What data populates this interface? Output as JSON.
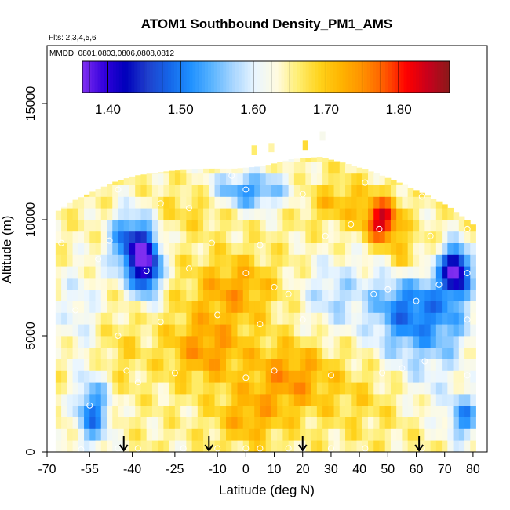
{
  "chart_data": {
    "type": "heatmap",
    "title": "ATOM1 Southbound Density_PM1_AMS",
    "flights_note": "Flts: 2,3,4,5,6",
    "dates_note": "MMDD: 0801,0803,0806,0808,0812",
    "xlabel": "Latitude (deg N)",
    "ylabel": "Altitude (m)",
    "xlim": [
      -70,
      85
    ],
    "ylim": [
      0,
      17500
    ],
    "x_ticks": [
      -70,
      -55,
      -40,
      -25,
      -10,
      0,
      10,
      20,
      30,
      40,
      50,
      60,
      70,
      80
    ],
    "y_ticks": [
      0,
      5000,
      10000,
      15000
    ],
    "colorbar": {
      "range": [
        1.365,
        1.87
      ],
      "ticks": [
        1.4,
        1.5,
        1.6,
        1.7,
        1.8
      ],
      "tick_labels": [
        "1.40",
        "1.50",
        "1.60",
        "1.70",
        "1.80"
      ],
      "colors": [
        "#7f2ef0",
        "#3300dd",
        "#0000bb",
        "#1f3fcc",
        "#1565e8",
        "#1e90ff",
        "#5ab4ff",
        "#a9d6ff",
        "#eaf6ff",
        "#fffbe0",
        "#ffee70",
        "#ffd21a",
        "#ffb300",
        "#ff9000",
        "#ff5a00",
        "#ff0000",
        "#c8001c",
        "#8b1a1a"
      ]
    },
    "profile_top": [
      [
        -68,
        10300
      ],
      [
        -62,
        10800
      ],
      [
        -55,
        11200
      ],
      [
        -48,
        11600
      ],
      [
        -40,
        11900
      ],
      [
        -28,
        12100
      ],
      [
        -15,
        12200
      ],
      [
        -5,
        12200
      ],
      [
        5,
        12300
      ],
      [
        15,
        12600
      ],
      [
        25,
        12700
      ],
      [
        35,
        12400
      ],
      [
        45,
        12000
      ],
      [
        55,
        11500
      ],
      [
        62,
        11100
      ],
      [
        70,
        10600
      ],
      [
        80,
        9700
      ]
    ],
    "sparse_top": [
      [
        2,
        12800
      ],
      [
        8,
        12900
      ],
      [
        20,
        13000
      ],
      [
        26,
        13400
      ]
    ],
    "features": [
      {
        "x": 47,
        "y": 9700,
        "rx": 6,
        "ry": 900,
        "v": 1.84
      },
      {
        "x": 73,
        "y": 7600,
        "rx": 5,
        "ry": 1000,
        "v": 1.39
      },
      {
        "x": -36,
        "y": 7800,
        "rx": 5,
        "ry": 1300,
        "v": 1.41
      },
      {
        "x": -42,
        "y": 8700,
        "rx": 7,
        "ry": 1400,
        "v": 1.48
      },
      {
        "x": -18,
        "y": 10300,
        "rx": 12,
        "ry": 900,
        "v": 1.69
      },
      {
        "x": 0,
        "y": 11000,
        "rx": 14,
        "ry": 800,
        "v": 1.52
      },
      {
        "x": 32,
        "y": 10500,
        "rx": 12,
        "ry": 900,
        "v": 1.71
      },
      {
        "x": 55,
        "y": 6000,
        "rx": 12,
        "ry": 2200,
        "v": 1.5
      },
      {
        "x": 70,
        "y": 5500,
        "rx": 10,
        "ry": 2000,
        "v": 1.56
      },
      {
        "x": 30,
        "y": 6500,
        "rx": 12,
        "ry": 1600,
        "v": 1.58
      },
      {
        "x": -5,
        "y": 6800,
        "rx": 15,
        "ry": 1400,
        "v": 1.73
      },
      {
        "x": -15,
        "y": 4200,
        "rx": 14,
        "ry": 1500,
        "v": 1.74
      },
      {
        "x": 15,
        "y": 3000,
        "rx": 14,
        "ry": 1500,
        "v": 1.74
      },
      {
        "x": 0,
        "y": 1200,
        "rx": 12,
        "ry": 1200,
        "v": 1.72
      },
      {
        "x": -55,
        "y": 1500,
        "rx": 6,
        "ry": 1500,
        "v": 1.5
      },
      {
        "x": -60,
        "y": 6000,
        "rx": 8,
        "ry": 2000,
        "v": 1.6
      },
      {
        "x": 40,
        "y": 2000,
        "rx": 15,
        "ry": 1500,
        "v": 1.68
      },
      {
        "x": 63,
        "y": 2500,
        "rx": 10,
        "ry": 1500,
        "v": 1.62
      },
      {
        "x": 76,
        "y": 1200,
        "rx": 6,
        "ry": 1000,
        "v": 1.52
      },
      {
        "x": -45,
        "y": 4000,
        "rx": 8,
        "ry": 1500,
        "v": 1.68
      },
      {
        "x": 55,
        "y": 8000,
        "rx": 8,
        "ry": 1200,
        "v": 1.74
      }
    ],
    "background_value": 1.65,
    "points": [
      [
        -58,
        100
      ],
      [
        -45,
        150
      ],
      [
        -38,
        150
      ],
      [
        -22,
        150
      ],
      [
        -10,
        150
      ],
      [
        0,
        150
      ],
      [
        5,
        150
      ],
      [
        15,
        150
      ],
      [
        20,
        150
      ],
      [
        30,
        150
      ],
      [
        42,
        150
      ],
      [
        62,
        150
      ],
      [
        -55,
        2000
      ],
      [
        -42,
        3500
      ],
      [
        -38,
        3000
      ],
      [
        -25,
        3400
      ],
      [
        0,
        3200
      ],
      [
        10,
        3500
      ],
      [
        30,
        3300
      ],
      [
        48,
        3400
      ],
      [
        55,
        3600
      ],
      [
        63,
        3900
      ],
      [
        78,
        3300
      ],
      [
        -45,
        5000
      ],
      [
        -30,
        5600
      ],
      [
        -10,
        5900
      ],
      [
        5,
        5500
      ],
      [
        20,
        5700
      ],
      [
        45,
        6800
      ],
      [
        60,
        6500
      ],
      [
        78,
        5700
      ],
      [
        -60,
        6100
      ],
      [
        -35,
        7800
      ],
      [
        -20,
        7900
      ],
      [
        0,
        7700
      ],
      [
        10,
        7100
      ],
      [
        15,
        6800
      ],
      [
        50,
        7000
      ],
      [
        68,
        7200
      ],
      [
        78,
        7700
      ],
      [
        -65,
        9000
      ],
      [
        -52,
        8300
      ],
      [
        -48,
        9100
      ],
      [
        -12,
        9000
      ],
      [
        5,
        8900
      ],
      [
        28,
        9300
      ],
      [
        37,
        9800
      ],
      [
        47,
        9600
      ],
      [
        65,
        9300
      ],
      [
        78,
        9600
      ],
      [
        -45,
        11300
      ],
      [
        -30,
        10700
      ],
      [
        -20,
        10500
      ],
      [
        -5,
        11900
      ],
      [
        0,
        11300
      ],
      [
        20,
        11100
      ],
      [
        42,
        11600
      ],
      [
        62,
        11000
      ]
    ],
    "arrows_x": [
      -43,
      -13,
      20,
      61
    ]
  }
}
